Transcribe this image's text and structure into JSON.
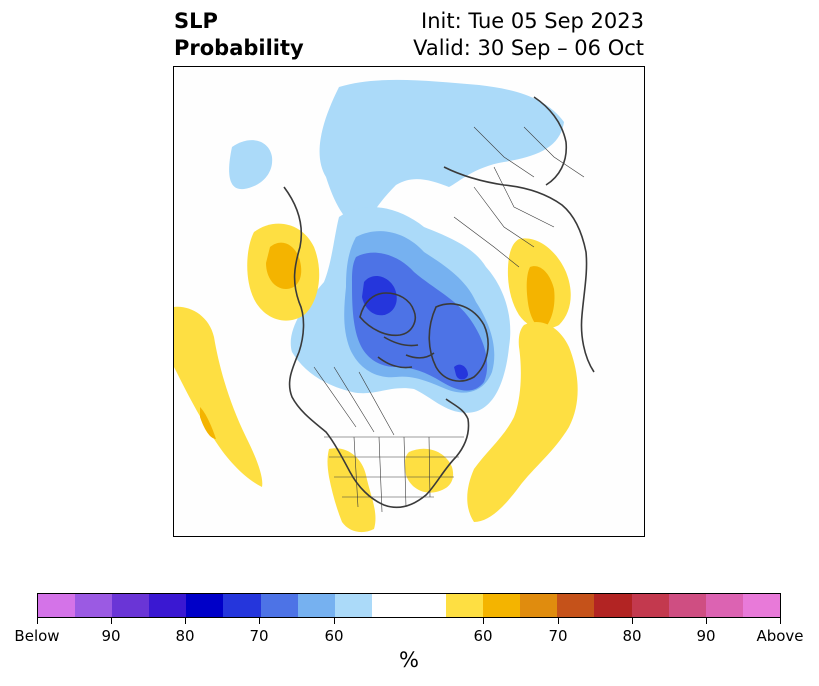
{
  "title": {
    "left_line1": "SLP",
    "left_line2": "Probability",
    "right_line1": "Init: Tue 05 Sep 2023",
    "right_line2": "Valid: 30 Sep – 06 Oct"
  },
  "colorbar": {
    "unit": "%",
    "labels": [
      "Below",
      "90",
      "80",
      "70",
      "60",
      "60",
      "70",
      "80",
      "90",
      "Above"
    ],
    "colors": [
      "#d473e8",
      "#9b5ae3",
      "#6a35d6",
      "#3a18d2",
      "#0000c8",
      "#2536dc",
      "#4d73e6",
      "#76b1f0",
      "#abdaf9",
      "#ffffff",
      "#fedf42",
      "#f4b400",
      "#e08c0e",
      "#c5521a",
      "#b22423",
      "#c3394e",
      "#cf4e82",
      "#dc63b2",
      "#e87ad9"
    ]
  },
  "map": {
    "projection": "north-polar-stereographic",
    "region": "Northern Hemisphere",
    "features": [
      {
        "name": "north-pacific-above-anomaly",
        "category": "above",
        "levels": [
          "60",
          "70"
        ]
      },
      {
        "name": "west-coast-us-above-anomaly",
        "category": "above",
        "levels": [
          "60",
          "70"
        ]
      },
      {
        "name": "canada-arctic-below-anomaly",
        "category": "below",
        "levels": [
          "60",
          "70"
        ]
      },
      {
        "name": "alaska-siberia-below-anomaly",
        "category": "below",
        "levels": [
          "60"
        ]
      },
      {
        "name": "eastern-europe-above-anomaly",
        "category": "above",
        "levels": [
          "60",
          "70"
        ]
      },
      {
        "name": "north-atlantic-above-anomaly",
        "category": "above",
        "levels": [
          "60"
        ]
      },
      {
        "name": "central-us-above-anomaly",
        "category": "above",
        "levels": [
          "60"
        ]
      },
      {
        "name": "southwest-us-above-anomaly",
        "category": "above",
        "levels": [
          "60"
        ]
      }
    ]
  }
}
